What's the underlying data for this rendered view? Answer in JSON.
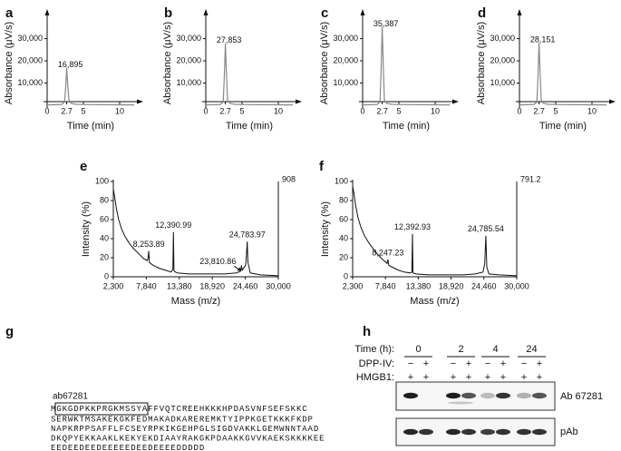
{
  "chart_data": [
    {
      "type": "line",
      "panel": "a",
      "y_label": "Absorbance (μV/s)",
      "x_label": "Time (min)",
      "color": "#888888",
      "x": [
        0,
        1,
        2,
        2.4,
        2.55,
        2.7,
        2.85,
        3,
        3.3,
        4,
        6,
        8,
        10,
        12
      ],
      "values": [
        150,
        250,
        350,
        1500,
        7600,
        16895,
        8400,
        2500,
        900,
        400,
        300,
        250,
        200,
        150
      ],
      "xlim": [
        0,
        12
      ],
      "xticks": [
        0,
        2.7,
        5,
        10
      ],
      "ylim": [
        0,
        38000
      ],
      "yticks": [
        {
          "value": 10000,
          "label": "10,000"
        },
        {
          "value": 20000,
          "label": "20,000"
        },
        {
          "value": 30000,
          "label": "30,000"
        }
      ],
      "annotations": [
        {
          "x": 2.7,
          "y": 16895,
          "label": "16,895"
        }
      ]
    },
    {
      "type": "line",
      "panel": "b",
      "y_label": "Absorbance (μV/s)",
      "x_label": "Time (min)",
      "color": "#888888",
      "x": [
        0,
        1,
        2,
        2.4,
        2.55,
        2.7,
        2.85,
        3,
        3.3,
        4,
        6,
        8,
        10,
        12
      ],
      "values": [
        150,
        250,
        350,
        1500,
        12500,
        27853,
        13900,
        2500,
        900,
        400,
        300,
        250,
        200,
        150
      ],
      "xlim": [
        0,
        12
      ],
      "xticks": [
        0,
        2.7,
        5,
        10
      ],
      "ylim": [
        0,
        38000
      ],
      "yticks": [
        {
          "value": 10000,
          "label": "10,000"
        },
        {
          "value": 20000,
          "label": "20,000"
        },
        {
          "value": 30000,
          "label": "30,000"
        }
      ],
      "annotations": [
        {
          "x": 2.7,
          "y": 27853,
          "label": "27,853"
        }
      ]
    },
    {
      "type": "line",
      "panel": "c",
      "y_label": "Absorbance (μV/s)",
      "x_label": "Time (min)",
      "color": "#888888",
      "x": [
        0,
        1,
        2,
        2.4,
        2.55,
        2.7,
        2.85,
        3,
        3.3,
        4,
        6,
        8,
        10,
        12
      ],
      "values": [
        150,
        250,
        350,
        1500,
        15900,
        35387,
        17700,
        2500,
        900,
        400,
        300,
        250,
        200,
        150
      ],
      "xlim": [
        0,
        12
      ],
      "xticks": [
        0,
        2.7,
        5,
        10
      ],
      "ylim": [
        0,
        38000
      ],
      "yticks": [
        {
          "value": 10000,
          "label": "10,000"
        },
        {
          "value": 20000,
          "label": "20,000"
        },
        {
          "value": 30000,
          "label": "30,000"
        }
      ],
      "annotations": [
        {
          "x": 2.7,
          "y": 35387,
          "label": "35,387"
        }
      ]
    },
    {
      "type": "line",
      "panel": "d",
      "y_label": "Absorbance (μV/s)",
      "x_label": "Time (min)",
      "color": "#888888",
      "x": [
        0,
        1,
        2,
        2.4,
        2.55,
        2.7,
        2.85,
        3,
        3.3,
        4,
        6,
        8,
        10,
        12
      ],
      "values": [
        150,
        250,
        350,
        1500,
        12700,
        28151,
        14100,
        2500,
        900,
        400,
        300,
        250,
        200,
        150
      ],
      "xlim": [
        0,
        12
      ],
      "xticks": [
        0,
        2.7,
        5,
        10
      ],
      "ylim": [
        0,
        38000
      ],
      "yticks": [
        {
          "value": 10000,
          "label": "10,000"
        },
        {
          "value": 20000,
          "label": "20,000"
        },
        {
          "value": 30000,
          "label": "30,000"
        }
      ],
      "annotations": [
        {
          "x": 2.7,
          "y": 28151,
          "label": "28,151"
        }
      ]
    },
    {
      "type": "line",
      "panel": "e",
      "y_label": "Intensity (%)",
      "x_label": "Mass (m/z)",
      "color": "#111111",
      "max_label": "908",
      "x": [
        2300,
        2500,
        2800,
        3200,
        3700,
        4300,
        5000,
        5800,
        6600,
        7400,
        8000,
        8150,
        8253.89,
        8350,
        9000,
        10000,
        11000,
        12000,
        12300,
        12390.99,
        12480,
        13000,
        15000,
        18000,
        21000,
        23000,
        23700,
        23810.86,
        23950,
        24500,
        24650,
        24783.97,
        24900,
        25300,
        27000,
        30000
      ],
      "values": [
        92,
        85,
        72,
        60,
        50,
        42,
        35,
        29,
        24,
        19,
        17,
        20,
        27,
        15,
        12,
        9,
        7,
        5,
        8,
        47,
        6,
        4,
        3,
        3,
        3,
        4,
        6,
        12,
        7,
        12,
        22,
        37,
        15,
        4,
        2,
        1
      ],
      "xlim": [
        2300,
        30000
      ],
      "xticks": [
        {
          "value": 2300,
          "label": "2,300"
        },
        {
          "value": 7840,
          "label": "7,840"
        },
        {
          "value": 13380,
          "label": "13,380"
        },
        {
          "value": 18920,
          "label": "18,920"
        },
        {
          "value": 24460,
          "label": "24,460"
        },
        {
          "value": 30000,
          "label": "30,000"
        }
      ],
      "ylim": [
        0,
        100
      ],
      "yticks": [
        0,
        20,
        40,
        60,
        80,
        100
      ],
      "annotations": [
        {
          "x": 8253.89,
          "y": 27,
          "label": "8,253.89"
        },
        {
          "x": 12390.99,
          "y": 47,
          "label": "12,390.99"
        },
        {
          "x": 23810.86,
          "y": 12,
          "label": "23,810.86",
          "arrow": true
        },
        {
          "x": 24783.97,
          "y": 37,
          "label": "24,783.97"
        }
      ]
    },
    {
      "type": "line",
      "panel": "f",
      "y_label": "Intensity (%)",
      "x_label": "Mass (m/z)",
      "color": "#111111",
      "max_label": "791.2",
      "x": [
        2300,
        2500,
        2800,
        3200,
        3700,
        4300,
        5000,
        5800,
        6600,
        7400,
        8100,
        8247.23,
        8400,
        9000,
        10000,
        11000,
        12000,
        12300,
        12392.93,
        12480,
        13000,
        15000,
        18000,
        21000,
        23000,
        24300,
        24600,
        24785.54,
        24950,
        25300,
        27000,
        30000
      ],
      "values": [
        95,
        88,
        75,
        62,
        52,
        43,
        36,
        29,
        23,
        18,
        14,
        18,
        12,
        10,
        7,
        5,
        4,
        5,
        45,
        4,
        3,
        2,
        2,
        2,
        3,
        5,
        14,
        43,
        10,
        3,
        2,
        1
      ],
      "xlim": [
        2300,
        30000
      ],
      "xticks": [
        {
          "value": 2300,
          "label": "2,300"
        },
        {
          "value": 7840,
          "label": "7,840"
        },
        {
          "value": 13380,
          "label": "13,380"
        },
        {
          "value": 18920,
          "label": "18,920"
        },
        {
          "value": 24460,
          "label": "24,460"
        },
        {
          "value": 30000,
          "label": "30,000"
        }
      ],
      "ylim": [
        0,
        100
      ],
      "yticks": [
        0,
        20,
        40,
        60,
        80,
        100
      ],
      "annotations": [
        {
          "x": 8247.23,
          "y": 18,
          "label": "8,247.23"
        },
        {
          "x": 12392.93,
          "y": 45,
          "label": "12,392.93"
        },
        {
          "x": 24785.54,
          "y": 43,
          "label": "24,785.54"
        }
      ]
    }
  ],
  "panel_g": {
    "panel": "g",
    "antibody": "ab67281",
    "first_line": [
      "M",
      "GKGDPKKPRGKMSSYA",
      "FFVQTCREEHKKKHPDASVNFSEFSKKC"
    ],
    "lines": [
      "SERWKTMSAKEKGKFEDMAKADKAREREMKTYIPPKGETKKKFKDP",
      "NAPKRPPSAFFLFCSEYRPKIKGEHPGLSIGDVAKKLGEMWNNTAAD",
      "DKQPYEKKAAKLKEKYEKDIAAYRAKGKPDAAKKGVVKAEKSKKKKEE",
      "EEDEEDEEDEEEEEDEEDEEEEDDDDD"
    ]
  },
  "panel_h": {
    "panel": "h",
    "time_label": "Time (h):",
    "times": [
      "0",
      "2",
      "4",
      "24"
    ],
    "dpp_label": "DPP-IV:",
    "dpp": [
      "−",
      "+",
      "−",
      "+",
      "−",
      "+",
      "−",
      "+"
    ],
    "hmgb1_label": "HMGB1:",
    "hmgb1": [
      "+",
      "+",
      "+",
      "+",
      "+",
      "+",
      "+",
      "+"
    ],
    "blots": [
      "Ab 67281",
      "pAb"
    ]
  }
}
